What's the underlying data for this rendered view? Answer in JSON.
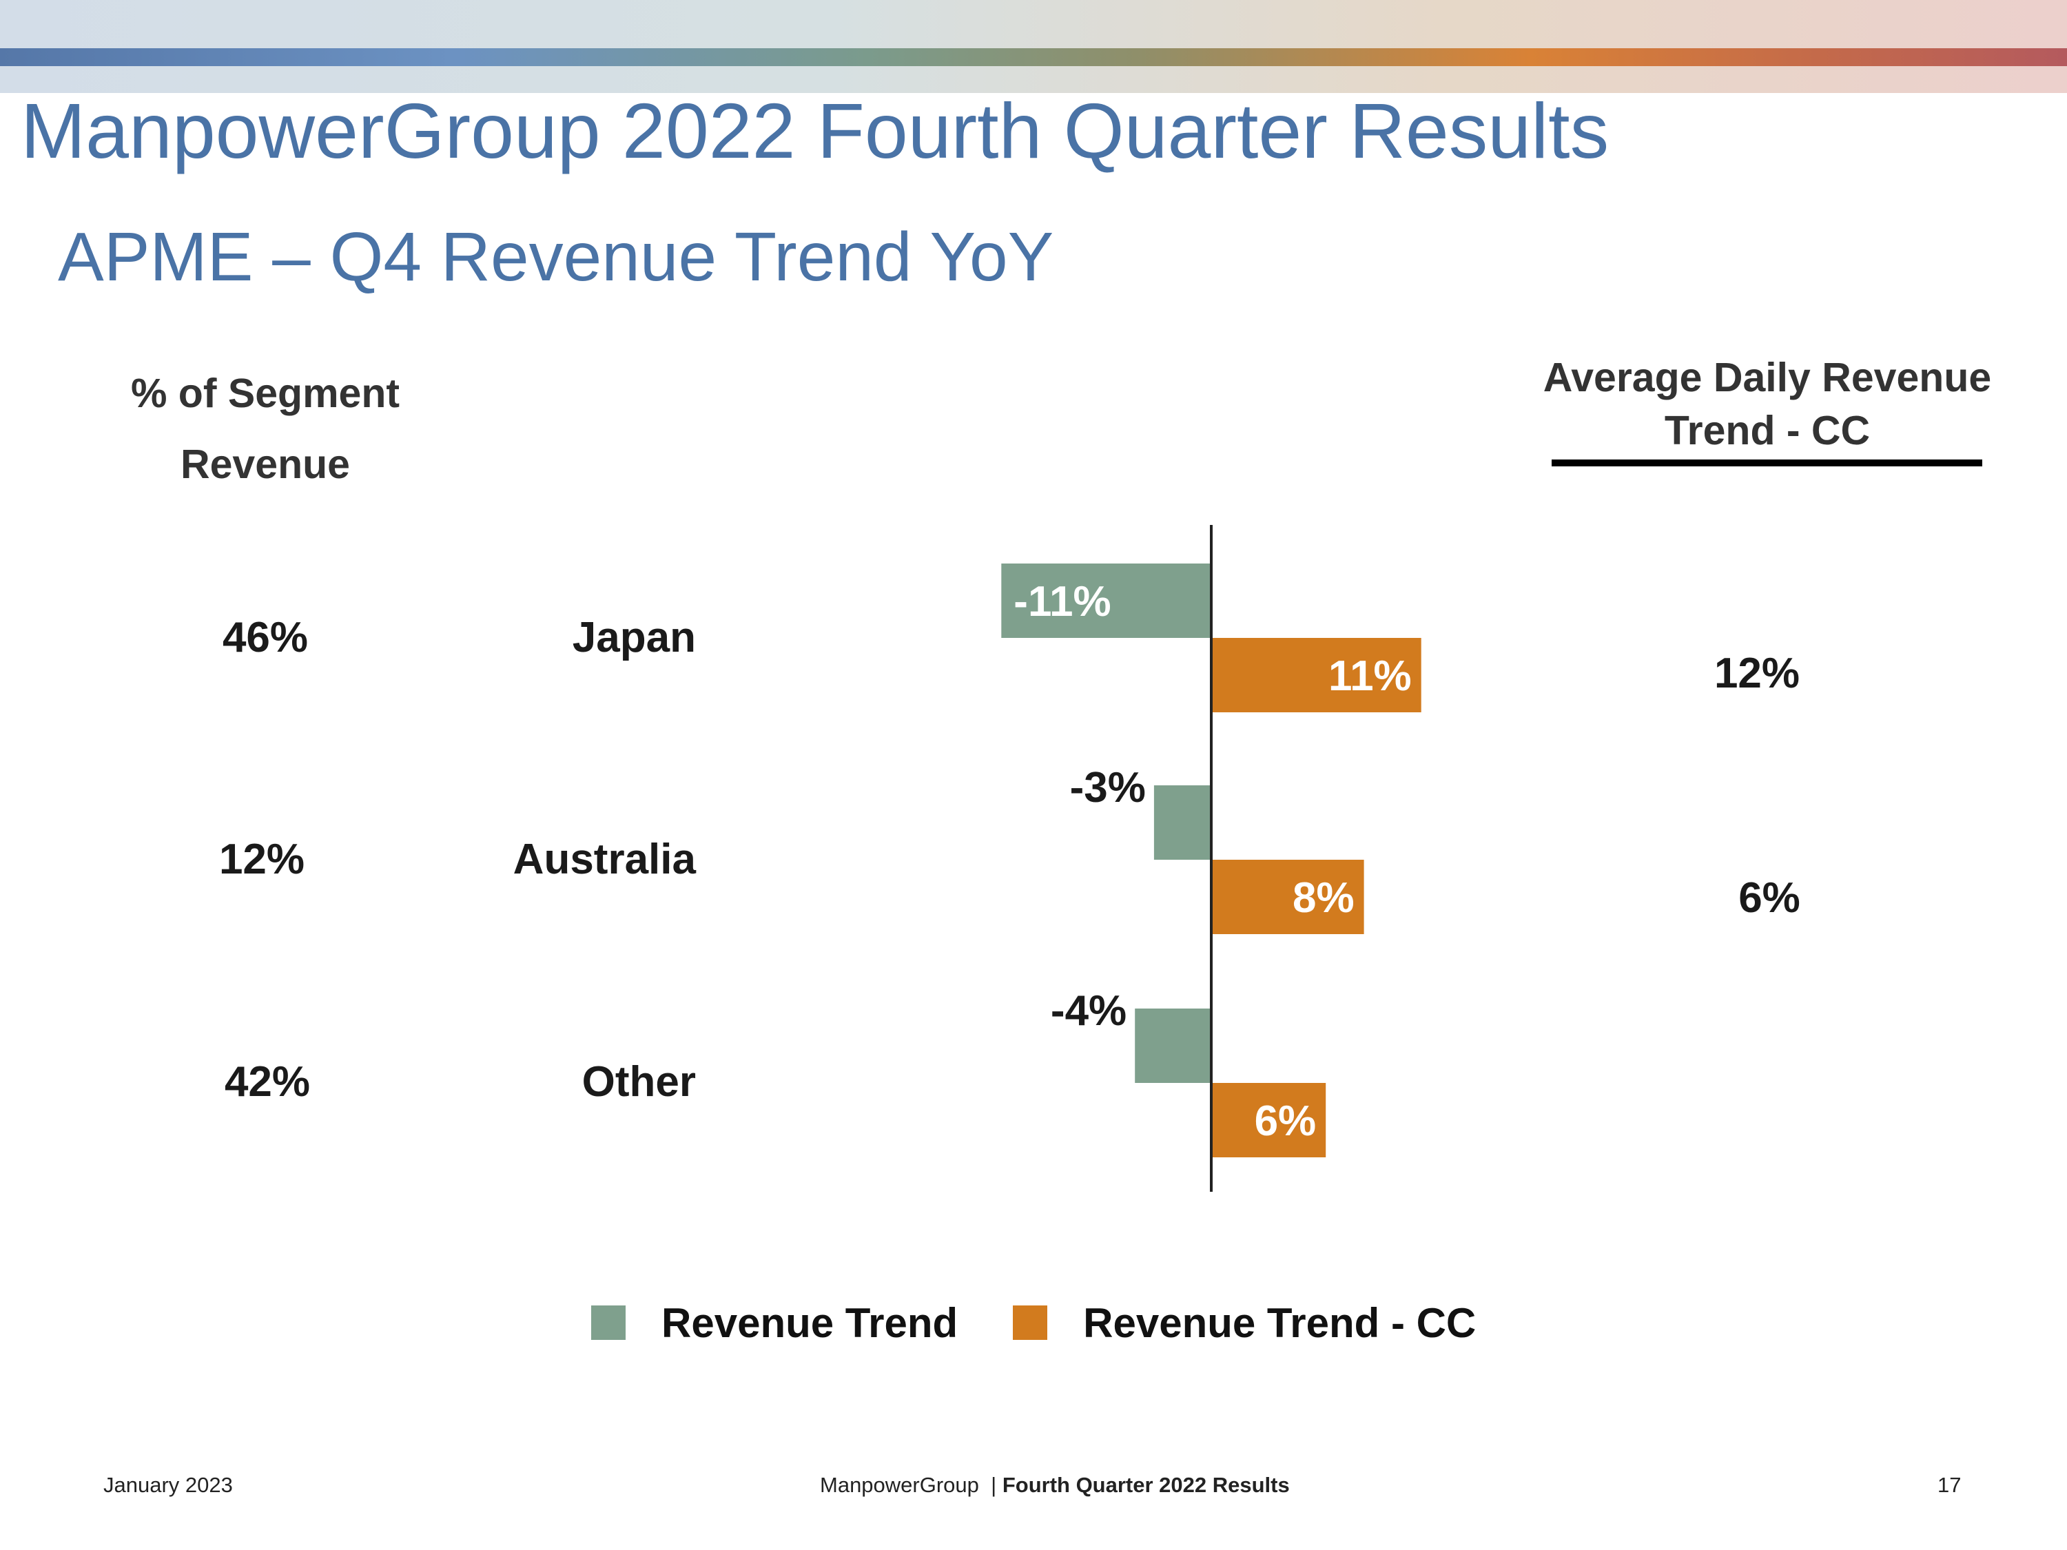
{
  "slide": {
    "title": "ManpowerGroup 2022 Fourth Quarter Results",
    "subtitle": "APME – Q4 Revenue Trend YoY",
    "segment_header": "% of Segment Revenue",
    "adr_header": "Average Daily Revenue Trend - CC"
  },
  "rows": [
    {
      "region": "Japan",
      "segment_pct": "46%",
      "adr_cc": "12%"
    },
    {
      "region": "Australia",
      "segment_pct": "12%",
      "adr_cc": "6%"
    },
    {
      "region": "Other",
      "segment_pct": "42%",
      "adr_cc": ""
    }
  ],
  "chart_data": {
    "type": "bar",
    "orientation": "horizontal",
    "categories": [
      "Japan",
      "Australia",
      "Other"
    ],
    "series": [
      {
        "name": "Revenue Trend",
        "values": [
          -11,
          -3,
          -4
        ],
        "labels": [
          "-11%",
          "-3%",
          "-4%"
        ],
        "color": "#7fa08d"
      },
      {
        "name": "Revenue Trend - CC",
        "values": [
          11,
          8,
          6
        ],
        "labels": [
          "11%",
          "8%",
          "6%"
        ],
        "color": "#d27b1e"
      }
    ],
    "xlim": [
      -11,
      11
    ],
    "grid": false,
    "legend": "bottom"
  },
  "footer": {
    "date": "January 2023",
    "company": "ManpowerGroup",
    "separator": "|",
    "report": "Fourth Quarter 2022 Results",
    "page": "17"
  }
}
